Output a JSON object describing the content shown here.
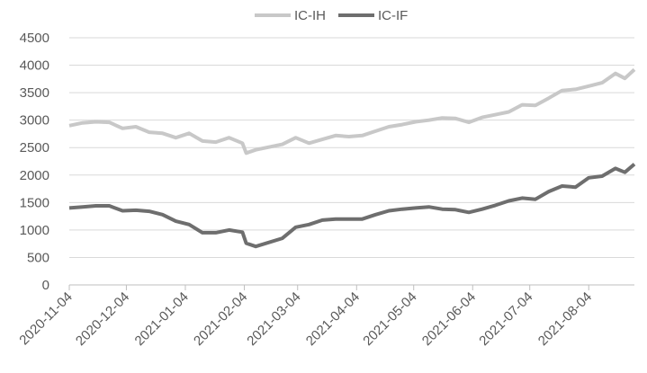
{
  "chart_data": {
    "type": "line",
    "x": [
      "2020-11-04",
      "2020-11-11",
      "2020-11-18",
      "2020-11-25",
      "2020-12-02",
      "2020-12-09",
      "2020-12-16",
      "2020-12-23",
      "2020-12-30",
      "2021-01-06",
      "2021-01-13",
      "2021-01-20",
      "2021-01-27",
      "2021-02-03",
      "2021-02-05",
      "2021-02-10",
      "2021-02-24",
      "2021-03-03",
      "2021-03-10",
      "2021-03-17",
      "2021-03-24",
      "2021-03-31",
      "2021-04-07",
      "2021-04-14",
      "2021-04-21",
      "2021-04-28",
      "2021-05-05",
      "2021-05-12",
      "2021-05-19",
      "2021-05-26",
      "2021-06-02",
      "2021-06-09",
      "2021-06-16",
      "2021-06-23",
      "2021-06-30",
      "2021-07-07",
      "2021-07-14",
      "2021-07-21",
      "2021-07-28",
      "2021-08-04",
      "2021-08-11",
      "2021-08-18",
      "2021-08-23",
      "2021-08-28"
    ],
    "series": [
      {
        "name": "IC-IH",
        "color": "#c8c8c8",
        "values": [
          2900,
          2950,
          2970,
          2960,
          2850,
          2880,
          2780,
          2760,
          2680,
          2760,
          2620,
          2600,
          2680,
          2580,
          2400,
          2460,
          2560,
          2680,
          2580,
          2650,
          2720,
          2700,
          2720,
          2800,
          2880,
          2920,
          2970,
          3000,
          3040,
          3030,
          2960,
          3050,
          3100,
          3150,
          3280,
          3270,
          3400,
          3540,
          3560,
          3620,
          3680,
          3850,
          3760,
          3920
        ]
      },
      {
        "name": "IC-IF",
        "color": "#6e6e6e",
        "values": [
          1400,
          1420,
          1440,
          1440,
          1350,
          1360,
          1340,
          1280,
          1160,
          1100,
          950,
          950,
          1000,
          960,
          760,
          700,
          850,
          1050,
          1100,
          1180,
          1200,
          1200,
          1200,
          1280,
          1350,
          1380,
          1400,
          1420,
          1380,
          1370,
          1320,
          1380,
          1450,
          1530,
          1580,
          1560,
          1700,
          1800,
          1780,
          1950,
          1980,
          2120,
          2050,
          2200
        ]
      }
    ],
    "xlim": [
      "2020-11-04",
      "2021-08-28"
    ],
    "xticks": [
      "2020-11-04",
      "2020-12-04",
      "2021-01-04",
      "2021-02-04",
      "2021-03-04",
      "2021-04-04",
      "2021-05-04",
      "2021-06-04",
      "2021-07-04",
      "2021-08-04"
    ],
    "ylim": [
      0,
      4500
    ],
    "yticks": [
      0,
      500,
      1000,
      1500,
      2000,
      2500,
      3000,
      3500,
      4000,
      4500
    ],
    "grid": true,
    "legend": "top"
  }
}
